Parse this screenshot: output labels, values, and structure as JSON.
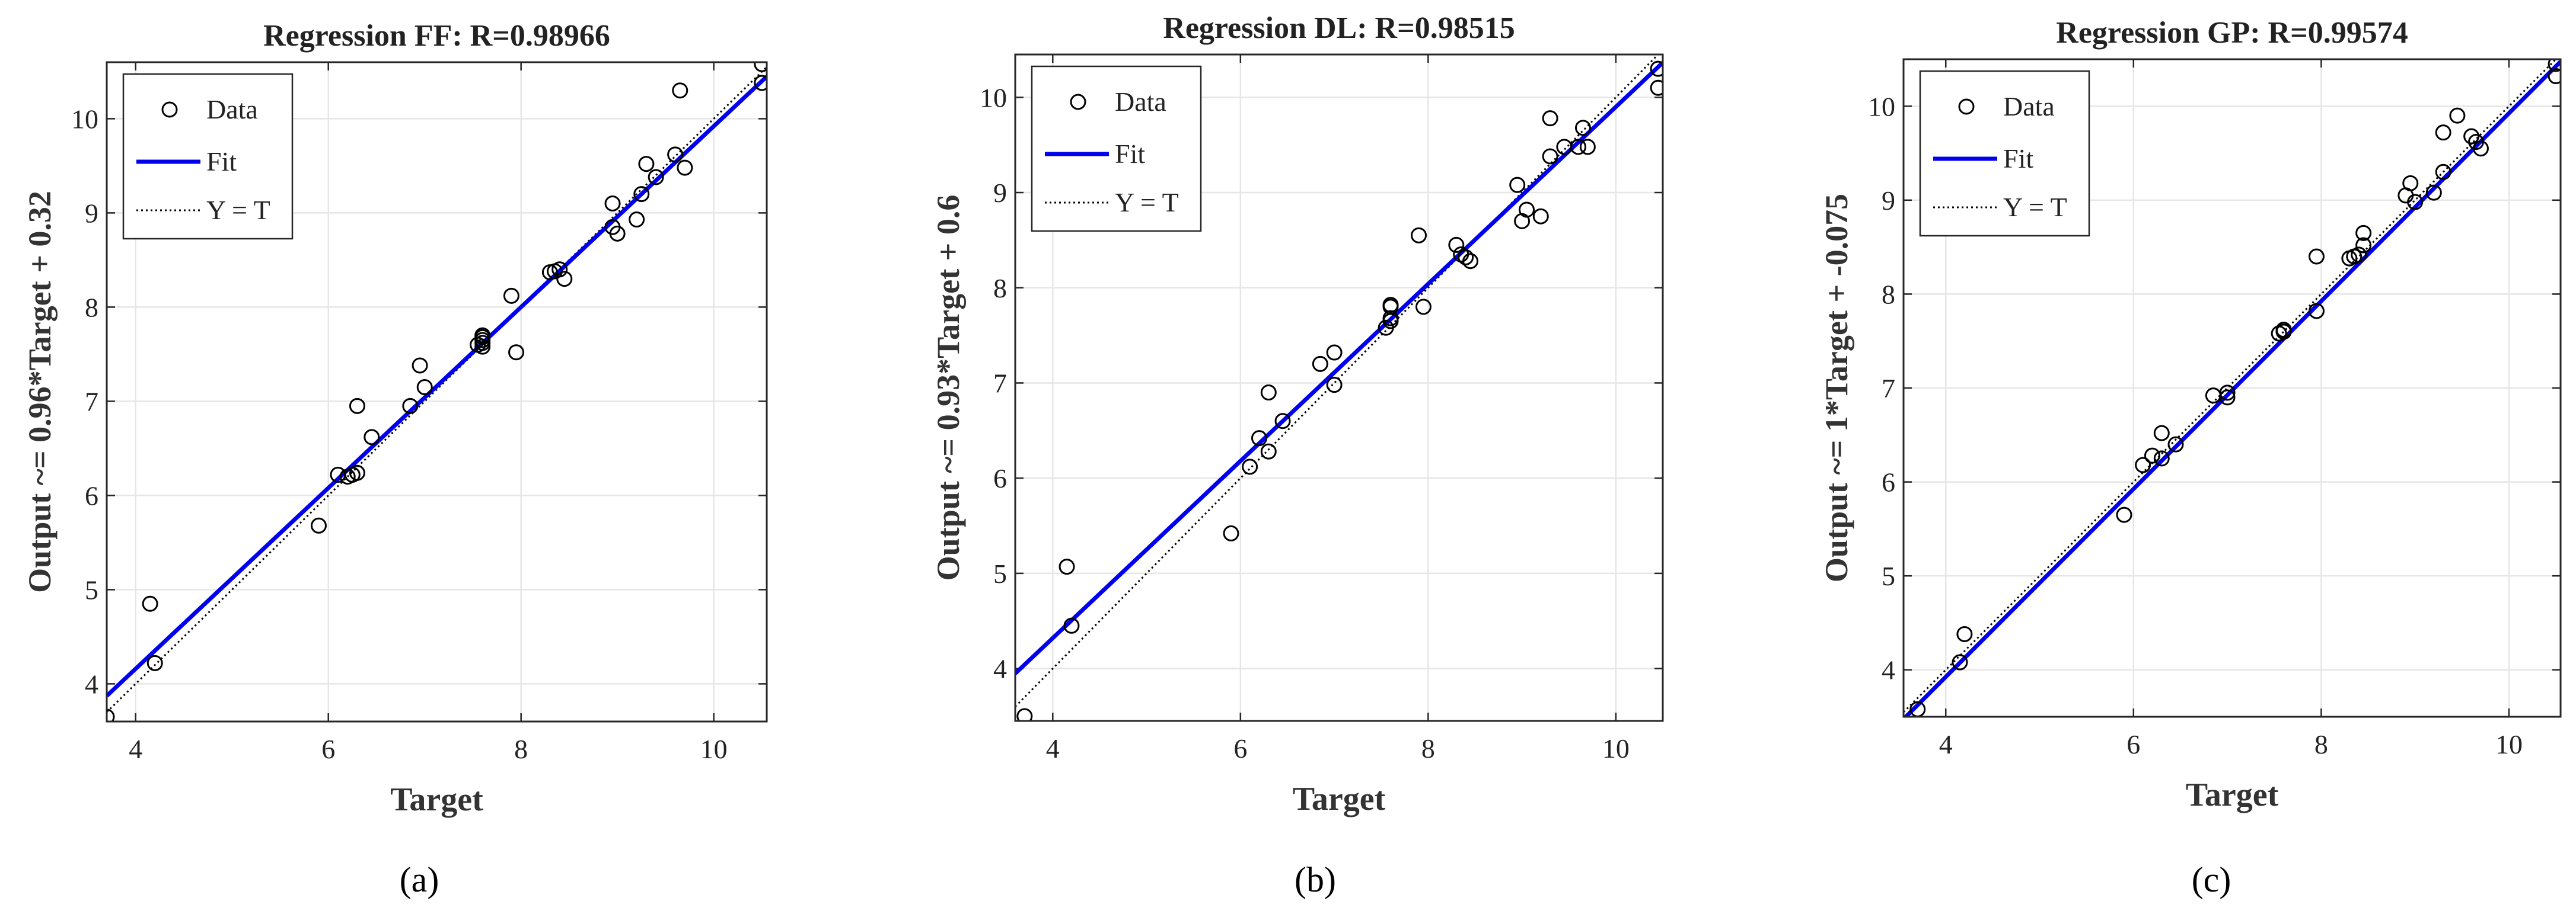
{
  "panel_labels": [
    "(a)",
    "(b)",
    "(c)"
  ],
  "legend": {
    "data_label": "Data",
    "fit_label": "Fit",
    "yt_label": "Y = T"
  },
  "colors": {
    "fit_line": "#0000ee",
    "data_marker": "#000000",
    "yt_line": "#000000",
    "grid": "#e6e6e6"
  },
  "chart_data": [
    {
      "type": "scatter",
      "title": "Regression FF: R=0.98966",
      "xlabel": "Target",
      "ylabel": "Output ~= 0.96*Target + 0.32",
      "xlim": [
        3.7,
        10.55
      ],
      "ylim": [
        3.6,
        10.6
      ],
      "xticks": [
        4,
        6,
        8,
        10
      ],
      "yticks": [
        4,
        5,
        6,
        7,
        8,
        9,
        10
      ],
      "grid": true,
      "legend_position": "top-left",
      "fit": {
        "slope": 0.96,
        "intercept": 0.32
      },
      "x": [
        3.7,
        4.15,
        4.2,
        5.9,
        6.1,
        6.2,
        6.25,
        6.3,
        6.3,
        6.45,
        6.85,
        6.95,
        7.0,
        7.55,
        7.6,
        7.6,
        7.6,
        7.6,
        7.6,
        7.9,
        7.95,
        8.3,
        8.35,
        8.4,
        8.45,
        8.95,
        8.95,
        9.0,
        9.2,
        9.25,
        9.3,
        9.4,
        9.6,
        9.65,
        9.7,
        10.5,
        10.5
      ],
      "y": [
        3.65,
        4.85,
        4.22,
        5.68,
        6.22,
        6.2,
        6.22,
        6.24,
        6.95,
        6.62,
        6.95,
        7.38,
        7.15,
        7.6,
        7.62,
        7.65,
        7.68,
        7.7,
        7.58,
        8.12,
        7.52,
        8.37,
        8.38,
        8.4,
        8.3,
        9.1,
        8.85,
        8.78,
        8.93,
        9.2,
        9.52,
        9.38,
        9.62,
        10.3,
        9.48,
        10.58,
        10.38
      ]
    },
    {
      "type": "scatter",
      "title": "Regression DL: R=0.98515",
      "xlabel": "Target",
      "ylabel": "Output ~= 0.93*Target + 0.6",
      "xlim": [
        3.6,
        10.5
      ],
      "ylim": [
        3.45,
        10.45
      ],
      "xticks": [
        4,
        6,
        8,
        10
      ],
      "yticks": [
        4,
        5,
        6,
        7,
        8,
        9,
        10
      ],
      "grid": true,
      "legend_position": "top-left",
      "fit": {
        "slope": 0.93,
        "intercept": 0.6
      },
      "x": [
        3.7,
        4.15,
        4.2,
        5.9,
        6.1,
        6.2,
        6.3,
        6.3,
        6.45,
        6.85,
        7.0,
        7.0,
        7.55,
        7.6,
        7.6,
        7.6,
        7.6,
        7.9,
        7.95,
        8.3,
        8.35,
        8.4,
        8.45,
        8.95,
        9.0,
        9.05,
        9.2,
        9.3,
        9.3,
        9.45,
        9.6,
        9.65,
        9.7,
        10.45,
        10.45
      ],
      "y": [
        3.5,
        5.07,
        4.45,
        5.42,
        6.12,
        6.42,
        6.9,
        6.28,
        6.6,
        7.2,
        7.32,
        6.98,
        7.58,
        7.65,
        7.8,
        7.82,
        7.68,
        8.55,
        7.8,
        8.45,
        8.35,
        8.32,
        8.28,
        9.08,
        8.7,
        8.82,
        8.75,
        9.38,
        9.78,
        9.48,
        9.48,
        9.68,
        9.48,
        10.3,
        10.1
      ]
    },
    {
      "type": "scatter",
      "title": "Regression GP: R=0.99574",
      "xlabel": "Target",
      "ylabel": "Output ~= 1*Target + -0.075",
      "xlim": [
        3.55,
        10.55
      ],
      "ylim": [
        3.5,
        10.5
      ],
      "xticks": [
        4,
        6,
        8,
        10
      ],
      "yticks": [
        4,
        5,
        6,
        7,
        8,
        9,
        10
      ],
      "grid": true,
      "legend_position": "top-left",
      "fit": {
        "slope": 1.0,
        "intercept": -0.075
      },
      "x": [
        3.7,
        4.15,
        4.2,
        5.9,
        6.1,
        6.2,
        6.3,
        6.3,
        6.45,
        6.85,
        7.0,
        7.0,
        7.55,
        7.6,
        7.6,
        7.6,
        7.95,
        7.95,
        8.3,
        8.35,
        8.4,
        8.45,
        8.45,
        8.9,
        8.95,
        9.0,
        9.2,
        9.3,
        9.3,
        9.45,
        9.6,
        9.65,
        9.7,
        10.5,
        10.5
      ],
      "y": [
        3.58,
        4.08,
        4.38,
        5.65,
        6.18,
        6.28,
        6.52,
        6.25,
        6.4,
        6.92,
        6.95,
        6.9,
        7.58,
        7.6,
        7.62,
        7.6,
        8.4,
        7.82,
        8.38,
        8.4,
        8.42,
        8.52,
        8.65,
        9.05,
        9.18,
        8.98,
        9.08,
        9.3,
        9.72,
        9.9,
        9.68,
        9.62,
        9.55,
        10.45,
        10.32
      ]
    }
  ]
}
